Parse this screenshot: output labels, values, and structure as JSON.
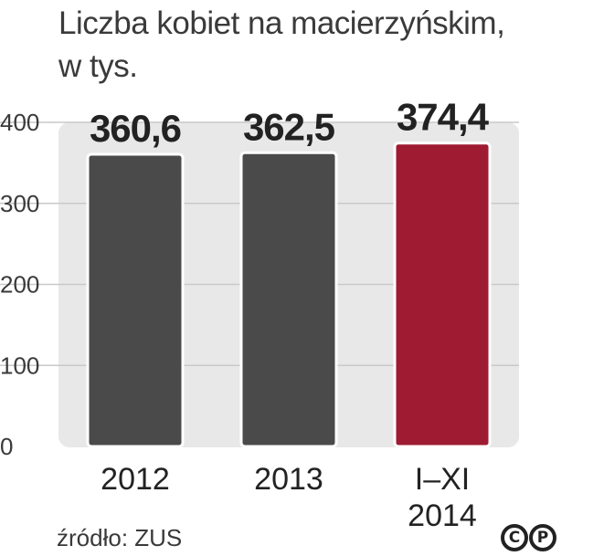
{
  "header": {
    "title_line1": "Liczba kobiet na macierzyńskim,",
    "title_line2": "w tys."
  },
  "chart_data": {
    "type": "bar",
    "categories": [
      [
        "2012"
      ],
      [
        "2013"
      ],
      [
        "I–XI",
        "2014"
      ]
    ],
    "values": [
      360.6,
      362.5,
      374.4
    ],
    "value_labels": [
      "360,6",
      "362,5",
      "374,4"
    ],
    "ylim": [
      0,
      400
    ],
    "yticks": [
      0,
      100,
      200,
      300,
      400
    ],
    "grid": true,
    "colors": [
      "#4a4a4a",
      "#4a4a4a",
      "#9e1b32"
    ],
    "plot_background": "#e8e8e8",
    "gridline_color": "#c9c9c9"
  },
  "footer": {
    "source": "źródło: ZUS",
    "copyright_c": "C",
    "copyright_p": "P"
  }
}
